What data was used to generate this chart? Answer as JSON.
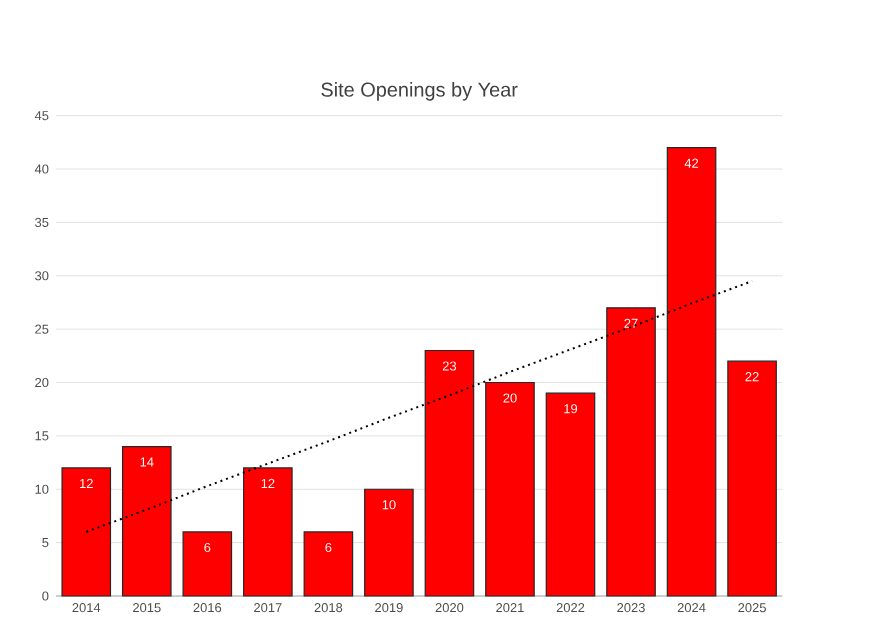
{
  "chart_data": {
    "type": "bar",
    "title": "Site Openings by Year",
    "categories": [
      "2014",
      "2015",
      "2016",
      "2017",
      "2018",
      "2019",
      "2020",
      "2021",
      "2022",
      "2023",
      "2024",
      "2025"
    ],
    "series": [
      {
        "color": "#ff0000",
        "values": [
          12,
          14,
          6,
          12,
          6,
          10,
          23,
          20,
          19,
          27,
          42,
          22
        ],
        "value_labels": [
          "12",
          "14",
          "6",
          "12",
          "6",
          "10",
          "23",
          "20",
          "19",
          "27",
          "42",
          "22"
        ]
      },
      {
        "type": "line",
        "color": "#000000",
        "line_style": "dotted",
        "values": [
          6,
          8.1,
          10.3,
          12.4,
          14.5,
          16.7,
          18.8,
          21,
          23.1,
          25.2,
          27.4,
          29.5
        ]
      }
    ],
    "ylim": [
      0,
      45
    ],
    "yticks": [
      0,
      5,
      10,
      15,
      20,
      25,
      30,
      35,
      40,
      45
    ],
    "grid": "y"
  }
}
